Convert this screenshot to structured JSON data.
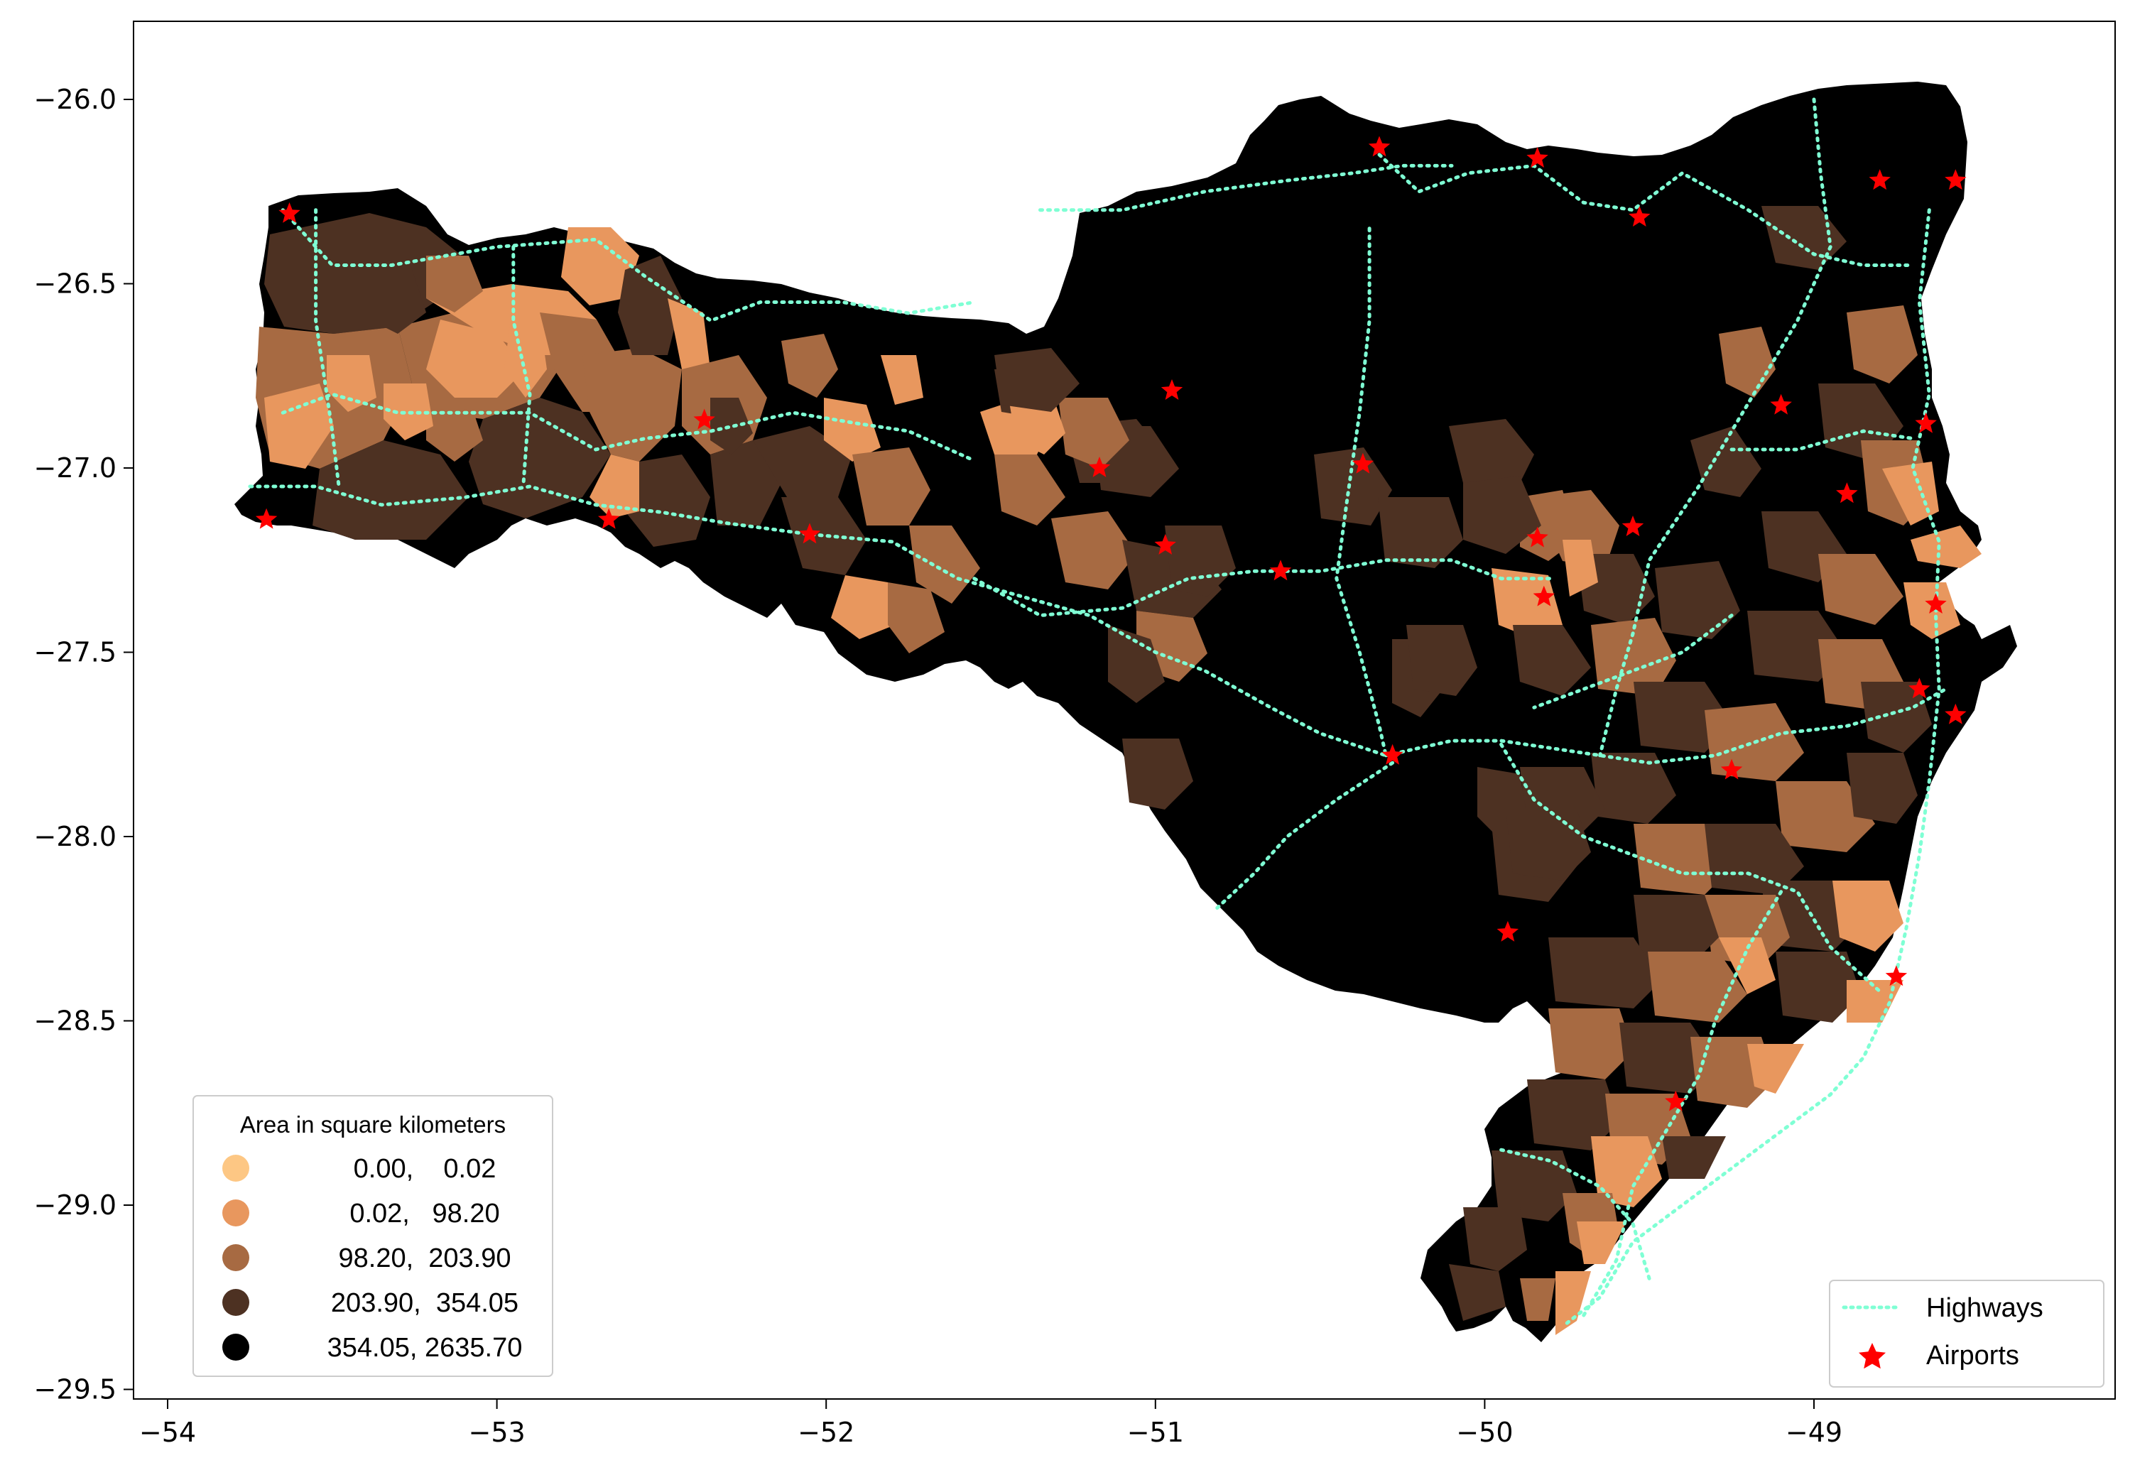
{
  "chart_data": {
    "type": "map",
    "x_ticks": [
      "−54",
      "−53",
      "−52",
      "−51",
      "−50",
      "−49"
    ],
    "y_ticks": [
      "−26.0",
      "−26.5",
      "−27.0",
      "−27.5",
      "−28.0",
      "−28.5",
      "−29.0",
      "−29.5"
    ],
    "xlim": [
      -54.1,
      -48.1
    ],
    "ylim": [
      -29.55,
      -25.8
    ],
    "area_legend": {
      "title": "Area in square kilometers",
      "placement": "lower-left",
      "classes": [
        {
          "label": "0.00,    0.02",
          "color": "#fdc784"
        },
        {
          "label": "0.02,   98.20",
          "color": "#e8975e"
        },
        {
          "label": "98.20,  203.90",
          "color": "#a76a42"
        },
        {
          "label": "203.90,  354.05",
          "color": "#4d3122"
        },
        {
          "label": "354.05, 2635.70",
          "color": "#000000"
        }
      ]
    },
    "layer_legend": {
      "placement": "lower-right",
      "items": [
        {
          "label": "Highways",
          "color": "#7fffd4",
          "style": "dotted-line"
        },
        {
          "label": "Airports",
          "color": "#ff0000",
          "style": "star"
        }
      ]
    },
    "airports": [
      {
        "x": -53.63,
        "y": -26.31
      },
      {
        "x": -53.7,
        "y": -27.14
      },
      {
        "x": -52.66,
        "y": -27.14
      },
      {
        "x": -52.37,
        "y": -26.87
      },
      {
        "x": -52.05,
        "y": -27.18
      },
      {
        "x": -51.17,
        "y": -27.0
      },
      {
        "x": -50.95,
        "y": -26.79
      },
      {
        "x": -50.97,
        "y": -27.21
      },
      {
        "x": -50.62,
        "y": -27.28
      },
      {
        "x": -50.37,
        "y": -26.99
      },
      {
        "x": -50.32,
        "y": -26.13
      },
      {
        "x": -50.28,
        "y": -27.78
      },
      {
        "x": -49.84,
        "y": -26.16
      },
      {
        "x": -49.84,
        "y": -27.19
      },
      {
        "x": -49.82,
        "y": -27.35
      },
      {
        "x": -49.93,
        "y": -28.26
      },
      {
        "x": -49.53,
        "y": -26.32
      },
      {
        "x": -49.55,
        "y": -27.16
      },
      {
        "x": -49.42,
        "y": -28.72
      },
      {
        "x": -49.25,
        "y": -27.82
      },
      {
        "x": -49.1,
        "y": -26.83
      },
      {
        "x": -48.9,
        "y": -27.07
      },
      {
        "x": -48.8,
        "y": -26.22
      },
      {
        "x": -48.57,
        "y": -26.22
      },
      {
        "x": -48.66,
        "y": -26.88
      },
      {
        "x": -48.63,
        "y": -27.37
      },
      {
        "x": -48.68,
        "y": -27.6
      },
      {
        "x": -48.57,
        "y": -27.67
      },
      {
        "x": -48.75,
        "y": -28.38
      }
    ],
    "highways": [
      [
        [
          -53.65,
          -26.3
        ],
        [
          -53.5,
          -26.45
        ],
        [
          -53.32,
          -26.45
        ],
        [
          -53.0,
          -26.4
        ],
        [
          -52.7,
          -26.38
        ],
        [
          -52.55,
          -26.48
        ],
        [
          -52.35,
          -26.6
        ],
        [
          -52.2,
          -26.55
        ],
        [
          -51.95,
          -26.55
        ],
        [
          -51.75,
          -26.58
        ],
        [
          -51.55,
          -26.55
        ]
      ],
      [
        [
          -53.65,
          -26.85
        ],
        [
          -53.5,
          -26.8
        ],
        [
          -53.3,
          -26.85
        ],
        [
          -53.1,
          -26.85
        ],
        [
          -52.9,
          -26.85
        ],
        [
          -52.7,
          -26.95
        ],
        [
          -52.55,
          -26.92
        ],
        [
          -52.35,
          -26.9
        ],
        [
          -52.1,
          -26.85
        ],
        [
          -51.9,
          -26.88
        ],
        [
          -51.75,
          -26.9
        ],
        [
          -51.55,
          -26.98
        ]
      ],
      [
        [
          -53.75,
          -27.05
        ],
        [
          -53.55,
          -27.05
        ],
        [
          -53.35,
          -27.1
        ],
        [
          -53.1,
          -27.08
        ],
        [
          -52.9,
          -27.05
        ],
        [
          -52.7,
          -27.1
        ],
        [
          -52.5,
          -27.12
        ],
        [
          -52.3,
          -27.15
        ],
        [
          -52.05,
          -27.18
        ],
        [
          -51.8,
          -27.2
        ],
        [
          -51.6,
          -27.3
        ],
        [
          -51.4,
          -27.35
        ],
        [
          -51.2,
          -27.4
        ],
        [
          -51.0,
          -27.5
        ],
        [
          -50.85,
          -27.55
        ],
        [
          -50.65,
          -27.65
        ],
        [
          -50.5,
          -27.72
        ],
        [
          -50.3,
          -27.78
        ]
      ],
      [
        [
          -51.55,
          -27.3
        ],
        [
          -51.35,
          -27.4
        ],
        [
          -51.1,
          -27.38
        ],
        [
          -50.9,
          -27.3
        ],
        [
          -50.7,
          -27.28
        ],
        [
          -50.5,
          -27.28
        ],
        [
          -50.3,
          -27.25
        ],
        [
          -50.1,
          -27.25
        ],
        [
          -49.95,
          -27.3
        ],
        [
          -49.8,
          -27.3
        ]
      ],
      [
        [
          -50.3,
          -27.78
        ],
        [
          -50.1,
          -27.74
        ],
        [
          -49.95,
          -27.74
        ],
        [
          -49.8,
          -27.76
        ],
        [
          -49.65,
          -27.78
        ],
        [
          -49.5,
          -27.8
        ],
        [
          -49.3,
          -27.78
        ],
        [
          -49.1,
          -27.72
        ],
        [
          -48.9,
          -27.7
        ],
        [
          -48.7,
          -27.65
        ],
        [
          -48.6,
          -27.6
        ]
      ],
      [
        [
          -50.32,
          -26.15
        ],
        [
          -50.2,
          -26.25
        ],
        [
          -50.05,
          -26.2
        ],
        [
          -49.85,
          -26.18
        ],
        [
          -49.7,
          -26.28
        ],
        [
          -49.55,
          -26.3
        ],
        [
          -49.4,
          -26.2
        ],
        [
          -49.2,
          -26.3
        ],
        [
          -49.0,
          -26.42
        ],
        [
          -48.85,
          -26.45
        ],
        [
          -48.7,
          -26.45
        ]
      ],
      [
        [
          -51.35,
          -26.3
        ],
        [
          -51.1,
          -26.3
        ],
        [
          -50.85,
          -26.25
        ],
        [
          -50.6,
          -26.22
        ],
        [
          -50.4,
          -26.2
        ],
        [
          -50.25,
          -26.18
        ],
        [
          -50.1,
          -26.18
        ]
      ],
      [
        [
          -50.35,
          -26.35
        ],
        [
          -50.35,
          -26.6
        ],
        [
          -50.38,
          -26.85
        ],
        [
          -50.42,
          -27.1
        ],
        [
          -50.45,
          -27.3
        ],
        [
          -50.38,
          -27.5
        ],
        [
          -50.32,
          -27.7
        ],
        [
          -50.3,
          -27.78
        ]
      ],
      [
        [
          -50.28,
          -27.8
        ],
        [
          -50.45,
          -27.9
        ],
        [
          -50.6,
          -28.0
        ],
        [
          -50.7,
          -28.1
        ],
        [
          -50.82,
          -28.2
        ]
      ],
      [
        [
          -49.95,
          -27.75
        ],
        [
          -49.85,
          -27.9
        ],
        [
          -49.7,
          -28.0
        ],
        [
          -49.55,
          -28.05
        ],
        [
          -49.4,
          -28.1
        ],
        [
          -49.2,
          -28.1
        ],
        [
          -49.05,
          -28.15
        ],
        [
          -48.95,
          -28.3
        ],
        [
          -48.8,
          -28.42
        ]
      ],
      [
        [
          -48.65,
          -26.3
        ],
        [
          -48.68,
          -26.55
        ],
        [
          -48.65,
          -26.8
        ],
        [
          -48.7,
          -27.0
        ],
        [
          -48.62,
          -27.2
        ],
        [
          -48.63,
          -27.4
        ],
        [
          -48.62,
          -27.6
        ],
        [
          -48.65,
          -27.85
        ],
        [
          -48.68,
          -28.05
        ],
        [
          -48.72,
          -28.25
        ],
        [
          -48.77,
          -28.45
        ],
        [
          -48.85,
          -28.6
        ],
        [
          -48.95,
          -28.7
        ],
        [
          -49.1,
          -28.8
        ],
        [
          -49.25,
          -28.9
        ],
        [
          -49.4,
          -29.0
        ],
        [
          -49.55,
          -29.1
        ],
        [
          -49.65,
          -29.25
        ],
        [
          -49.75,
          -29.32
        ]
      ],
      [
        [
          -49.0,
          -26.0
        ],
        [
          -48.98,
          -26.2
        ],
        [
          -48.95,
          -26.4
        ],
        [
          -49.05,
          -26.6
        ],
        [
          -49.15,
          -26.75
        ],
        [
          -49.25,
          -26.9
        ],
        [
          -49.35,
          -27.05
        ],
        [
          -49.5,
          -27.25
        ],
        [
          -49.55,
          -27.45
        ],
        [
          -49.6,
          -27.6
        ],
        [
          -49.65,
          -27.78
        ]
      ],
      [
        [
          -49.25,
          -26.95
        ],
        [
          -49.05,
          -26.95
        ],
        [
          -48.85,
          -26.9
        ],
        [
          -48.7,
          -26.92
        ]
      ],
      [
        [
          -49.25,
          -27.4
        ],
        [
          -49.4,
          -27.5
        ],
        [
          -49.55,
          -27.55
        ],
        [
          -49.7,
          -27.6
        ],
        [
          -49.85,
          -27.65
        ]
      ],
      [
        [
          -49.1,
          -28.15
        ],
        [
          -49.2,
          -28.3
        ],
        [
          -49.3,
          -28.5
        ],
        [
          -49.35,
          -28.65
        ],
        [
          -49.45,
          -28.8
        ],
        [
          -49.55,
          -28.95
        ],
        [
          -49.6,
          -29.15
        ],
        [
          -49.7,
          -29.3
        ]
      ],
      [
        [
          -49.95,
          -28.85
        ],
        [
          -49.8,
          -28.88
        ],
        [
          -49.65,
          -28.95
        ],
        [
          -49.55,
          -29.05
        ],
        [
          -49.5,
          -29.2
        ]
      ],
      [
        [
          -53.55,
          -26.3
        ],
        [
          -53.55,
          -26.6
        ],
        [
          -53.5,
          -26.9
        ],
        [
          -53.48,
          -27.05
        ]
      ],
      [
        [
          -52.95,
          -26.4
        ],
        [
          -52.95,
          -26.6
        ],
        [
          -52.9,
          -26.8
        ],
        [
          -52.92,
          -27.05
        ]
      ]
    ]
  }
}
